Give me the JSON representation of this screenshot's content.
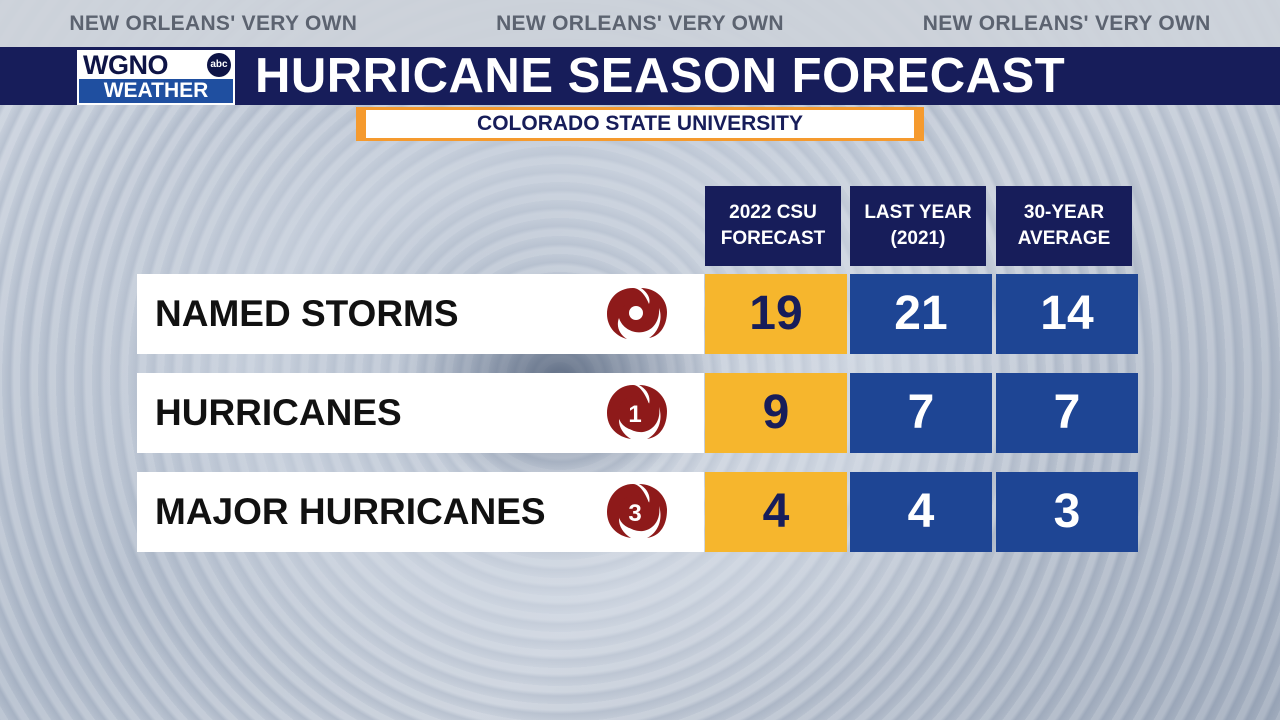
{
  "taglines": [
    "NEW ORLEANS' VERY OWN",
    "NEW ORLEANS' VERY OWN",
    "NEW ORLEANS' VERY OWN"
  ],
  "logo": {
    "top": "WGNO",
    "network": "abc",
    "bottom": "WEATHER"
  },
  "title": "HURRICANE SEASON FORECAST",
  "subtitle": "COLORADO STATE UNIVERSITY",
  "columns": [
    {
      "line1": "2022 CSU",
      "line2": "FORECAST"
    },
    {
      "line1": "LAST YEAR",
      "line2": "(2021)"
    },
    {
      "line1": "30-YEAR",
      "line2": "AVERAGE"
    }
  ],
  "rows": [
    {
      "label": "NAMED STORMS",
      "icon": "tropical-storm-icon",
      "icon_text": "",
      "values": [
        "19",
        "21",
        "14"
      ]
    },
    {
      "label": "HURRICANES",
      "icon": "hurricane-category-1-icon",
      "icon_text": "1",
      "values": [
        "9",
        "7",
        "7"
      ]
    },
    {
      "label": "MAJOR HURRICANES",
      "icon": "hurricane-category-3-icon",
      "icon_text": "3",
      "values": [
        "4",
        "4",
        "3"
      ]
    }
  ],
  "colors": {
    "navy": "#171d5a",
    "blue_cell": "#1e4594",
    "forecast_cell": "#f6b62d",
    "subtitle_border": "#f59a2e",
    "storm_icon": "#8e1a1a"
  }
}
